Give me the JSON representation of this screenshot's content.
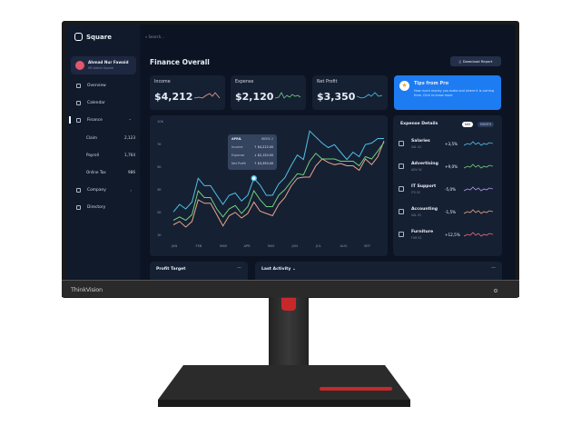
{
  "brand": {
    "app_name": "Square",
    "monitor_logo": "ThinkVision"
  },
  "search": {
    "placeholder": "Search..."
  },
  "user": {
    "name": "Ahmad Nur Fawaid",
    "role": "HR Admin Square"
  },
  "sidebar": {
    "items": [
      {
        "label": "Overview",
        "icon": "grid-icon"
      },
      {
        "label": "Calendar",
        "icon": "calendar-icon"
      },
      {
        "label": "Finance",
        "icon": "wallet-icon",
        "expanded": true,
        "sub": [
          {
            "label": "Claim",
            "count": "2,123"
          },
          {
            "label": "Payroll",
            "count": "1,764"
          },
          {
            "label": "Online Tax",
            "count": "986"
          }
        ]
      },
      {
        "label": "Company",
        "icon": "briefcase-icon"
      },
      {
        "label": "Directory",
        "icon": "contacts-icon"
      }
    ]
  },
  "header": {
    "title": "Finance Overall",
    "download_label": "Download Report"
  },
  "kpis": [
    {
      "label": "Income",
      "value": "$4,212",
      "color": "#e8a58a"
    },
    {
      "label": "Expense",
      "value": "$2,120",
      "color": "#6fcf7f"
    },
    {
      "label": "Net Profit",
      "value": "$3,350",
      "color": "#4fc3e8"
    }
  ],
  "tips": {
    "title": "Tips from Pro",
    "text": "How much money you make and where it is coming from. Click to know more"
  },
  "chart_data": {
    "type": "line",
    "yticks": [
      "1K",
      "2K",
      "3K",
      "5K",
      "7K",
      "10K"
    ],
    "xticks": [
      "JAN",
      "FEB",
      "MAR",
      "APR",
      "MAY",
      "JUN",
      "JUL",
      "AUG",
      "SEP"
    ],
    "grid": false,
    "series": [
      {
        "color": "#4fc3e8",
        "values": [
          2.07,
          2.4,
          2.2,
          2.5,
          4.1,
          3.45,
          3.45,
          2.8,
          2.4,
          2.8,
          2.9,
          2.55,
          2.8,
          4.1,
          3.5,
          2.8,
          2.8,
          3.6,
          4.15,
          5.2,
          6.15,
          5.75,
          8.9,
          8.1,
          7.3,
          6.8,
          7.1,
          6.4,
          5.75,
          6.4,
          6.0,
          7.1,
          7.3,
          7.9,
          7.9
        ]
      },
      {
        "color": "#6fcf7f",
        "values": [
          1.7,
          1.85,
          1.7,
          1.95,
          3.0,
          2.7,
          2.7,
          2.2,
          1.85,
          2.2,
          2.35,
          2.0,
          2.3,
          3.0,
          2.6,
          2.3,
          2.3,
          2.8,
          3.1,
          3.8,
          4.5,
          4.4,
          5.6,
          6.3,
          5.8,
          5.8,
          5.8,
          5.6,
          5.6,
          5.6,
          5.2,
          6.0,
          5.8,
          6.5,
          7.4
        ]
      },
      {
        "color": "#e8a58a",
        "values": [
          1.5,
          1.65,
          1.4,
          1.65,
          2.6,
          2.45,
          2.45,
          1.95,
          1.45,
          1.9,
          2.05,
          1.8,
          2.0,
          2.5,
          2.1,
          2.0,
          1.9,
          2.4,
          2.7,
          3.4,
          4.1,
          4.2,
          4.2,
          5.2,
          5.8,
          5.5,
          5.3,
          5.4,
          5.2,
          5.2,
          4.8,
          5.8,
          5.3,
          6.0,
          7.6
        ]
      }
    ],
    "tooltip": {
      "month": "APRIL",
      "week": "WEEK 2",
      "rows": [
        {
          "label": "Income",
          "value": "$4,212.00",
          "dir": "up"
        },
        {
          "label": "Expense",
          "value": "$2,120.00",
          "dir": "down"
        },
        {
          "label": "Net Profit",
          "value": "$3,350.00",
          "dir": "up"
        }
      ]
    }
  },
  "expense": {
    "title": "Expense Details",
    "toggle": [
      "DAY",
      "MONTH"
    ],
    "active": "DAY",
    "items": [
      {
        "name": "Salaries",
        "code": "SAL 02",
        "pct": "+3,5%",
        "color": "#4fc3e8"
      },
      {
        "name": "Advertising",
        "code": "ADV 02",
        "pct": "+9,0%",
        "color": "#6fcf7f"
      },
      {
        "name": "IT Support",
        "code": "ITS 02",
        "pct": "-5,0%",
        "color": "#b69ae8"
      },
      {
        "name": "Accounting",
        "code": "SAL 02",
        "pct": "-1,5%",
        "color": "#e8a58a"
      },
      {
        "name": "Furniture",
        "code": "FUR 02",
        "pct": "+12,5%",
        "color": "#e86a8a"
      }
    ]
  },
  "bottom": {
    "profit_target": "Profit Target",
    "last_activity": "Last Activity",
    "more": "···"
  }
}
